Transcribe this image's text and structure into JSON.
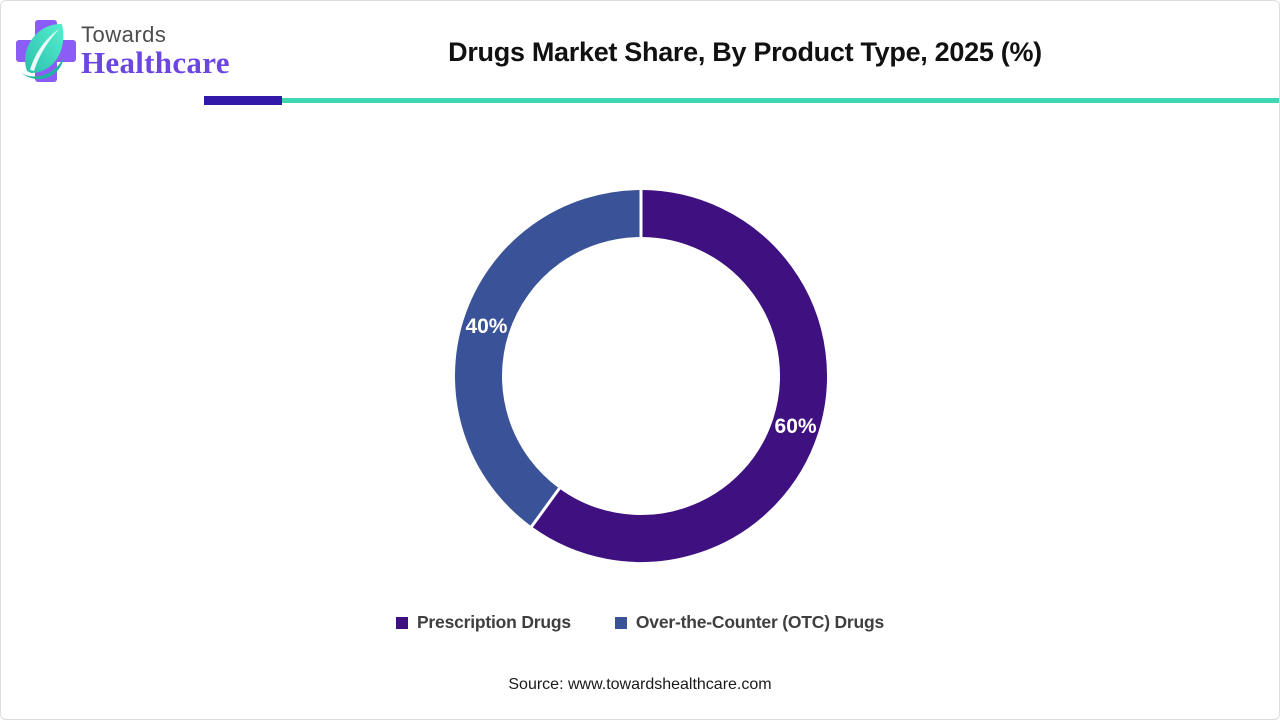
{
  "logo": {
    "line1": "Towards",
    "line2": "Healthcare",
    "cross_color": "#8b5cf6",
    "leaf_color_start": "#56f0cf",
    "leaf_color_end": "#2bbfad",
    "line1_color": "#4d4d4d",
    "line2_color": "#6b46e0"
  },
  "header": {
    "title": "Drugs Market Share, By Product Type, 2025 (%)"
  },
  "divider": {
    "accent_color": "#3319a8",
    "line_color": "#3ed7b4"
  },
  "chart_data": {
    "type": "pie",
    "donut": true,
    "title": "Drugs Market Share, By Product Type, 2025 (%)",
    "start_angle_deg": 0,
    "direction": "clockwise",
    "total": 100,
    "slices": [
      {
        "label": "Prescription Drugs",
        "value": 60,
        "display": "60%",
        "color": "#3f1180"
      },
      {
        "label": "Over-the-Counter (OTC) Drugs",
        "value": 40,
        "display": "40%",
        "color": "#3a5398"
      }
    ],
    "slice_label_color": "#ffffff",
    "separator_color": "#ffffff",
    "ring_outer_radius": 186,
    "ring_thickness": 47,
    "legend_position": "bottom"
  },
  "source": {
    "text": "Source: www.towardshealthcare.com"
  }
}
